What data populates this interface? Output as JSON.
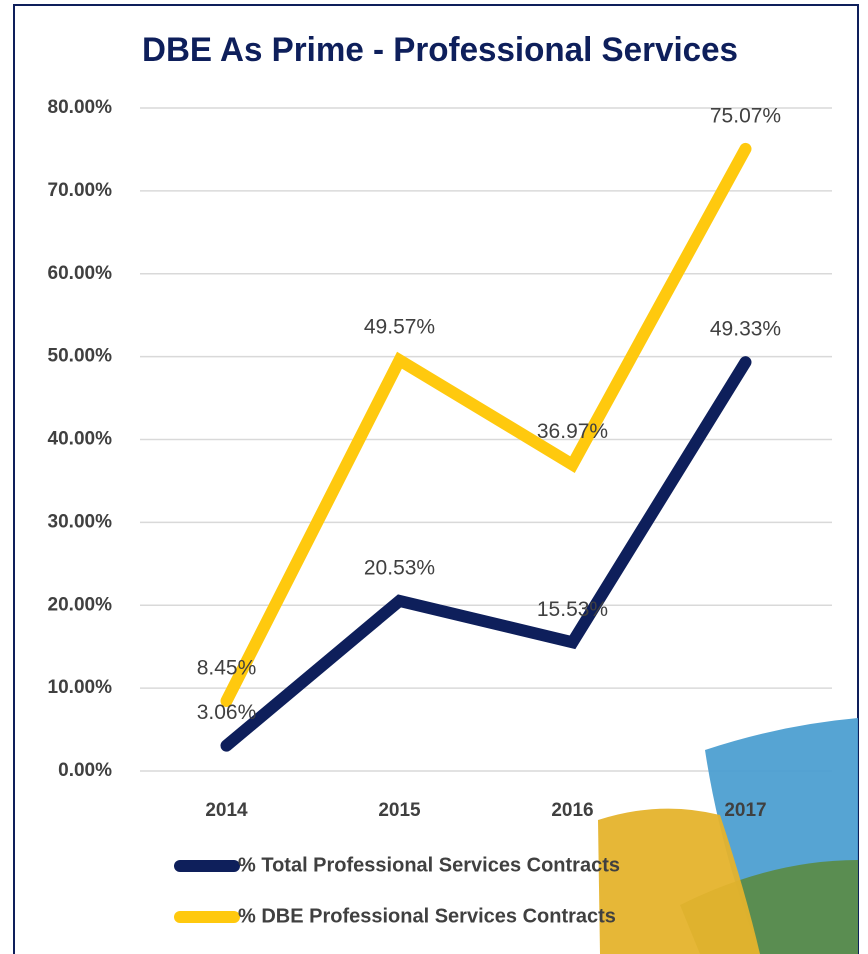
{
  "chart_data": {
    "type": "line",
    "title": "DBE As Prime - Professional Services",
    "categories": [
      "2014",
      "2015",
      "2016",
      "2017"
    ],
    "series": [
      {
        "name": "% Total Professional Services Contracts",
        "color": "#0e1f5b",
        "values": [
          3.06,
          20.53,
          15.53,
          49.33
        ],
        "value_labels": [
          "3.06%",
          "20.53%",
          "15.53%",
          "49.33%"
        ]
      },
      {
        "name": "% DBE Professional Services Contracts",
        "color": "#ffc90e",
        "values": [
          8.45,
          49.57,
          36.97,
          75.07
        ],
        "value_labels": [
          "8.45%",
          "49.57%",
          "36.97%",
          "75.07%"
        ]
      }
    ],
    "ylim": [
      0,
      80
    ],
    "yticks": [
      {
        "value": 0,
        "label": "0.00%"
      },
      {
        "value": 10,
        "label": "10.00%"
      },
      {
        "value": 20,
        "label": "20.00%"
      },
      {
        "value": 30,
        "label": "30.00%"
      },
      {
        "value": 40,
        "label": "40.00%"
      },
      {
        "value": 50,
        "label": "50.00%"
      },
      {
        "value": 60,
        "label": "60.00%"
      },
      {
        "value": 70,
        "label": "70.00%"
      },
      {
        "value": 80,
        "label": "80.00%"
      }
    ],
    "grid": true
  }
}
